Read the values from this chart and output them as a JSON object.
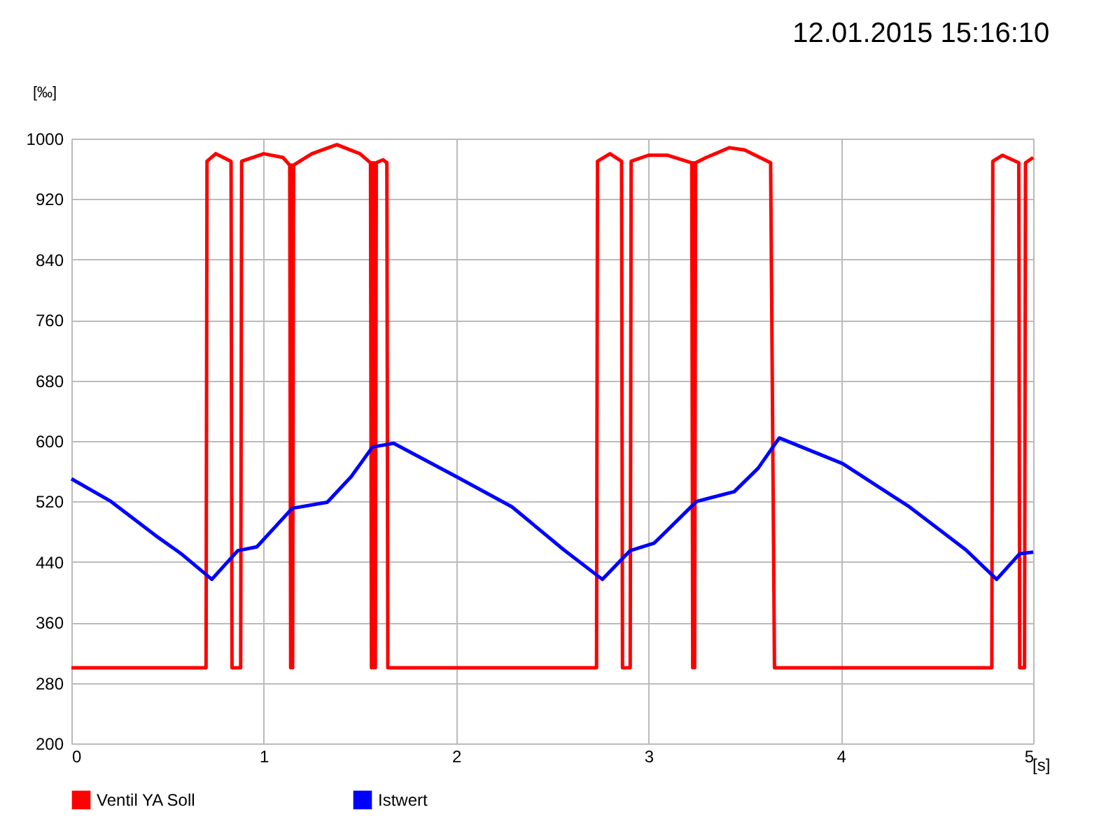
{
  "chart_data": {
    "type": "line",
    "title": "12.01.2015 15:16:10",
    "xlabel": "[s]",
    "ylabel": "[‰]",
    "xlim": [
      0,
      5
    ],
    "xticks": [
      0,
      1,
      2,
      3,
      4,
      5
    ],
    "ylim": [
      200,
      1000
    ],
    "yticks": [
      200,
      280,
      360,
      440,
      520,
      600,
      680,
      760,
      840,
      920,
      1000
    ],
    "grid": true,
    "legend": "bottom left",
    "marker": "none",
    "line_style": "solid",
    "series": [
      {
        "name": "Ventil YA Soll",
        "color": "#ff0000",
        "x": [
          0,
          0.7,
          0.705,
          0.75,
          0.83,
          0.835,
          0.88,
          0.885,
          1.0,
          1.1,
          1.135,
          1.14,
          1.145,
          1.15,
          1.155,
          1.25,
          1.38,
          1.5,
          1.555,
          1.56,
          1.565,
          1.57,
          1.575,
          1.58,
          1.585,
          1.62,
          1.64,
          1.645,
          2.73,
          2.735,
          2.8,
          2.86,
          2.865,
          2.905,
          2.91,
          3.0,
          3.1,
          3.225,
          3.23,
          3.235,
          3.24,
          3.245,
          3.3,
          3.42,
          3.5,
          3.635,
          3.655,
          4.785,
          4.79,
          4.84,
          4.925,
          4.93,
          4.955,
          4.96,
          5.0
        ],
        "values": [
          300,
          300,
          970,
          980,
          970,
          300,
          300,
          970,
          980,
          975,
          965,
          300,
          965,
          300,
          965,
          980,
          992,
          980,
          968,
          300,
          968,
          300,
          968,
          300,
          968,
          972,
          968,
          300,
          300,
          970,
          980,
          970,
          300,
          300,
          970,
          978,
          978,
          968,
          300,
          968,
          300,
          968,
          975,
          988,
          985,
          968,
          300,
          300,
          970,
          978,
          968,
          300,
          300,
          968,
          975
        ]
      },
      {
        "name": "Istwert",
        "color": "#0000ff",
        "x": [
          0,
          0.2,
          0.448,
          0.57,
          0.73,
          0.865,
          0.964,
          1.148,
          1.33,
          1.455,
          1.565,
          1.675,
          2.0,
          2.29,
          2.56,
          2.76,
          2.905,
          3.03,
          3.25,
          3.446,
          3.57,
          3.68,
          4.01,
          4.356,
          4.65,
          4.81,
          4.93,
          5.0
        ],
        "values": [
          550,
          521,
          473,
          451,
          417,
          455,
          460,
          511,
          519,
          553,
          592,
          597,
          553,
          513,
          456,
          417,
          455,
          465,
          520,
          533,
          564,
          604,
          570,
          513,
          456,
          417,
          451,
          453
        ]
      }
    ]
  }
}
